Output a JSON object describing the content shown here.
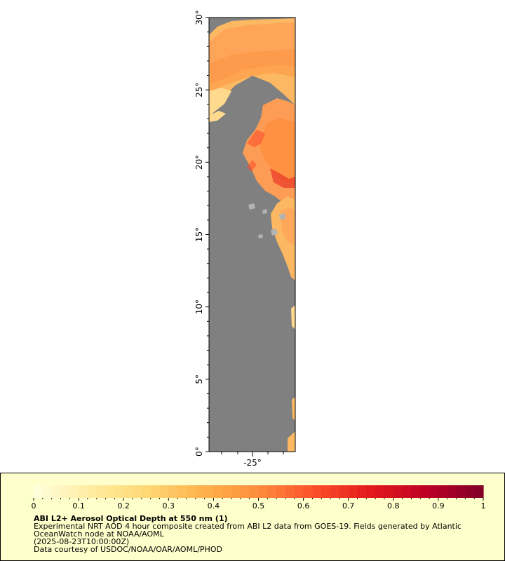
{
  "map": {
    "land_color": "#808080",
    "lat_labels": [
      "30°",
      "25°",
      "20°",
      "15°",
      "10°",
      "5°",
      "0°"
    ],
    "lon_labels": [
      "-25°"
    ]
  },
  "legend": {
    "title": "ABI L2+ Aerosol Optical Depth at 550 nm (1)",
    "line1": "Experimental NRT AOD 4 hour composite created from ABI L2 data from GOES-19. Fields generated by Atlantic",
    "line2": "OceanWatch node at NOAA/AOML",
    "line3": "(2025-08-23T10:00:00Z)",
    "line4": "Data courtesy of USDOC/NOAA/OAR/AOML/PHOD",
    "tick_labels": [
      "0",
      "0.1",
      "0.2",
      "0.3",
      "0.4",
      "0.5",
      "0.6",
      "0.7",
      "0.8",
      "0.9",
      "1"
    ],
    "colors": [
      "#ffffe0",
      "#ffeda0",
      "#fed976",
      "#feb24c",
      "#fd8d3c",
      "#fc4e2a",
      "#e31a1c",
      "#bd0026",
      "#800026"
    ]
  }
}
